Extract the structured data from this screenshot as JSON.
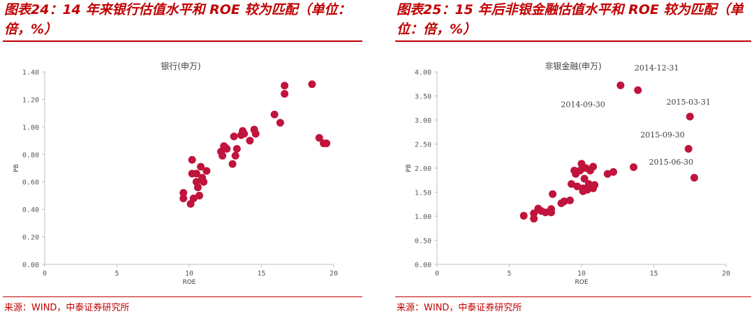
{
  "figures": [
    {
      "title": "图表24：14 年来银行估值水平和 ROE 较为匹配（单位：倍，%）",
      "source": "来源：WIND，中泰证券研究所"
    },
    {
      "title": "图表25：15 年后非银金融估值水平和 ROE 较为匹配（单位：倍，%）",
      "source": "来源：WIND，中泰证券研究所"
    }
  ],
  "chart_data": [
    {
      "type": "scatter",
      "title": "银行(申万)",
      "xlabel": "ROE",
      "ylabel": "PB",
      "xlim": [
        0,
        20
      ],
      "ylim": [
        0,
        1.4
      ],
      "xticks": [
        "0",
        "5",
        "10",
        "15",
        "20"
      ],
      "yticks": [
        "0.00",
        "0.20",
        "0.40",
        "0.60",
        "0.80",
        "1.00",
        "1.20",
        "1.40"
      ],
      "color": "#c0143c",
      "points": [
        [
          9.6,
          0.52
        ],
        [
          9.6,
          0.48
        ],
        [
          10.1,
          0.44
        ],
        [
          10.3,
          0.48
        ],
        [
          10.2,
          0.76
        ],
        [
          10.2,
          0.66
        ],
        [
          10.5,
          0.66
        ],
        [
          10.5,
          0.6
        ],
        [
          10.6,
          0.56
        ],
        [
          10.7,
          0.5
        ],
        [
          10.8,
          0.71
        ],
        [
          10.9,
          0.63
        ],
        [
          11.0,
          0.6
        ],
        [
          11.2,
          0.68
        ],
        [
          12.2,
          0.82
        ],
        [
          12.3,
          0.79
        ],
        [
          12.4,
          0.86
        ],
        [
          12.5,
          0.85
        ],
        [
          12.6,
          0.84
        ],
        [
          13.0,
          0.73
        ],
        [
          13.1,
          0.93
        ],
        [
          13.2,
          0.79
        ],
        [
          13.3,
          0.84
        ],
        [
          13.6,
          0.94
        ],
        [
          13.7,
          0.97
        ],
        [
          13.8,
          0.95
        ],
        [
          14.2,
          0.9
        ],
        [
          14.5,
          0.98
        ],
        [
          14.6,
          0.95
        ],
        [
          15.9,
          1.09
        ],
        [
          16.3,
          1.03
        ],
        [
          16.6,
          1.3
        ],
        [
          16.6,
          1.24
        ],
        [
          18.5,
          1.31
        ],
        [
          19.0,
          0.92
        ],
        [
          19.3,
          0.88
        ],
        [
          19.5,
          0.88
        ]
      ]
    },
    {
      "type": "scatter",
      "title": "非银金融(申万)",
      "xlabel": "ROE",
      "ylabel": "PB",
      "xlim": [
        0,
        20
      ],
      "ylim": [
        0,
        4
      ],
      "xticks": [
        "0",
        "5",
        "10",
        "15",
        "20"
      ],
      "yticks": [
        "0.00",
        "0.50",
        "1.00",
        "1.50",
        "2.00",
        "2.50",
        "3.00",
        "3.50",
        "4.00"
      ],
      "color": "#c0143c",
      "points": [
        [
          6.0,
          1.01
        ],
        [
          6.7,
          1.06
        ],
        [
          6.7,
          0.95
        ],
        [
          7.0,
          1.16
        ],
        [
          7.2,
          1.11
        ],
        [
          7.5,
          1.08
        ],
        [
          7.9,
          1.08
        ],
        [
          7.9,
          1.15
        ],
        [
          8.0,
          1.46
        ],
        [
          8.6,
          1.27
        ],
        [
          8.8,
          1.31
        ],
        [
          9.2,
          1.33
        ],
        [
          9.3,
          1.67
        ],
        [
          9.5,
          1.95
        ],
        [
          9.6,
          1.88
        ],
        [
          9.7,
          1.62
        ],
        [
          9.9,
          1.95
        ],
        [
          10.0,
          2.09
        ],
        [
          10.1,
          1.52
        ],
        [
          10.1,
          1.58
        ],
        [
          10.2,
          1.78
        ],
        [
          10.3,
          2.0
        ],
        [
          10.4,
          1.55
        ],
        [
          10.5,
          1.67
        ],
        [
          10.6,
          1.95
        ],
        [
          10.8,
          1.58
        ],
        [
          10.8,
          2.03
        ],
        [
          10.9,
          1.65
        ],
        [
          11.8,
          1.88
        ],
        [
          12.2,
          1.92
        ],
        [
          12.7,
          3.72
        ],
        [
          13.6,
          2.02
        ],
        [
          13.9,
          3.62
        ],
        [
          17.4,
          2.4
        ],
        [
          17.5,
          3.07
        ],
        [
          17.8,
          1.8
        ]
      ],
      "annotations": [
        {
          "text": "2014-12-31",
          "x": 15.2,
          "y": 4.03
        },
        {
          "text": "2014-09-30",
          "x": 10.1,
          "y": 3.27
        },
        {
          "text": "2015-03-31",
          "x": 17.4,
          "y": 3.32
        },
        {
          "text": "2015-09-30",
          "x": 15.6,
          "y": 2.64
        },
        {
          "text": "2015-06-30",
          "x": 16.2,
          "y": 2.07
        }
      ]
    }
  ]
}
